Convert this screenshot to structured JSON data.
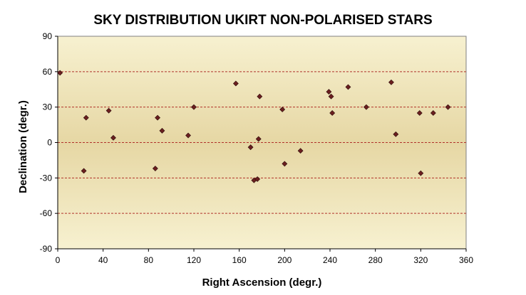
{
  "chart_data": {
    "type": "scatter",
    "title": "SKY DISTRIBUTION UKIRT NON-POLARISED STARS",
    "xlabel": "Right Ascension (degr.)",
    "ylabel": "Declination (degr.)",
    "xlim": [
      0,
      360
    ],
    "ylim": [
      -90,
      90
    ],
    "xticks": [
      0,
      40,
      80,
      120,
      160,
      200,
      240,
      280,
      320,
      360
    ],
    "yticks": [
      -90,
      -60,
      -30,
      0,
      30,
      60,
      90
    ],
    "grid": "horizontal dashed",
    "legend": "none",
    "marker_color": "#6b1f1f",
    "plot_background": [
      "#f7f1d0",
      "#e6d7a4"
    ],
    "points": [
      {
        "x": 2,
        "y": 59
      },
      {
        "x": 23,
        "y": -24
      },
      {
        "x": 25,
        "y": 21
      },
      {
        "x": 45,
        "y": 27
      },
      {
        "x": 49,
        "y": 4
      },
      {
        "x": 86,
        "y": -22
      },
      {
        "x": 88,
        "y": 21
      },
      {
        "x": 92,
        "y": 10
      },
      {
        "x": 115,
        "y": 6
      },
      {
        "x": 120,
        "y": 30
      },
      {
        "x": 157,
        "y": 50
      },
      {
        "x": 170,
        "y": -4
      },
      {
        "x": 173,
        "y": -32
      },
      {
        "x": 176,
        "y": -31
      },
      {
        "x": 177,
        "y": 3
      },
      {
        "x": 178,
        "y": 39
      },
      {
        "x": 198,
        "y": 28
      },
      {
        "x": 200,
        "y": -18
      },
      {
        "x": 214,
        "y": -7
      },
      {
        "x": 239,
        "y": 43
      },
      {
        "x": 241,
        "y": 39
      },
      {
        "x": 242,
        "y": 25
      },
      {
        "x": 256,
        "y": 47
      },
      {
        "x": 272,
        "y": 30
      },
      {
        "x": 294,
        "y": 51
      },
      {
        "x": 298,
        "y": 7
      },
      {
        "x": 319,
        "y": 25
      },
      {
        "x": 320,
        "y": -26
      },
      {
        "x": 331,
        "y": 25
      },
      {
        "x": 344,
        "y": 30
      }
    ]
  }
}
